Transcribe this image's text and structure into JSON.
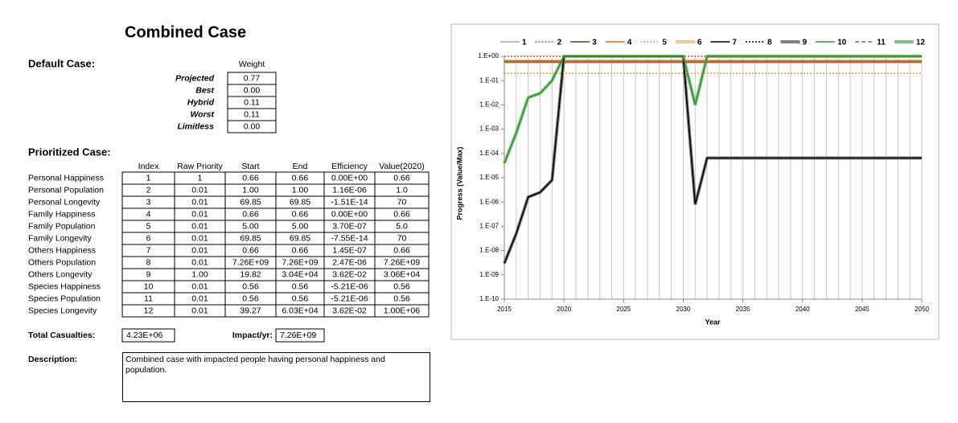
{
  "title": "Combined Case",
  "default_case": {
    "label": "Default Case:",
    "column": "Weight",
    "rows": [
      [
        "Projected",
        "0.77"
      ],
      [
        "Best",
        "0.00"
      ],
      [
        "Hybrid",
        "0.11"
      ],
      [
        "Worst",
        "0.11"
      ],
      [
        "Limitless",
        "0.00"
      ]
    ]
  },
  "prioritized_case": {
    "label": "Prioritized Case:",
    "columns": [
      "Index",
      "Raw Priority",
      "Start",
      "End",
      "Efficiency",
      "Value(2020)"
    ],
    "rows": [
      [
        "Personal Happiness",
        "1",
        "1",
        "0.66",
        "0.66",
        "0.00E+00",
        "0.66"
      ],
      [
        "Personal Population",
        "2",
        "0.01",
        "1.00",
        "1.00",
        "1.16E-06",
        "1.0"
      ],
      [
        "Personal Longevity",
        "3",
        "0.01",
        "69.85",
        "69.85",
        "-1.51E-14",
        "70"
      ],
      [
        "Family Happiness",
        "4",
        "0.01",
        "0.66",
        "0.66",
        "0.00E+00",
        "0.66"
      ],
      [
        "Family Population",
        "5",
        "0.01",
        "5.00",
        "5.00",
        "3.70E-07",
        "5.0"
      ],
      [
        "Family Longevity",
        "6",
        "0.01",
        "69.85",
        "69.85",
        "-7.55E-14",
        "70"
      ],
      [
        "Others Happiness",
        "7",
        "0.01",
        "0.66",
        "0.66",
        "1.45E-07",
        "0.66"
      ],
      [
        "Others Population",
        "8",
        "0.01",
        "7.26E+09",
        "7.26E+09",
        "2.47E-06",
        "7.26E+09"
      ],
      [
        "Others Longevity",
        "9",
        "1.00",
        "19.82",
        "3.04E+04",
        "3.62E-02",
        "3.06E+04"
      ],
      [
        "Species Happiness",
        "10",
        "0.01",
        "0.56",
        "0.56",
        "-5.21E-06",
        "0.56"
      ],
      [
        "Species Population",
        "11",
        "0.01",
        "0.56",
        "0.56",
        "-5.21E-06",
        "0.56"
      ],
      [
        "Species Longevity",
        "12",
        "0.01",
        "39.27",
        "6.03E+04",
        "3.62E-02",
        "1.00E+06"
      ]
    ]
  },
  "totals": {
    "casualties_label": "Total Casualties:",
    "casualties": "4.23E+06",
    "impact_label": "Impact/yr:",
    "impact": "7.26E+09"
  },
  "description": {
    "label": "Description:",
    "text": "Combined case with impacted people having personal happiness and population."
  },
  "chart_data": {
    "type": "line",
    "ylabel": "Progress (Value/Max)",
    "xlabel": "Year",
    "log_y": true,
    "grid": true,
    "legend": "top",
    "x": [
      2015,
      2016,
      2017,
      2018,
      2019,
      2020,
      2021,
      2022,
      2023,
      2024,
      2025,
      2026,
      2027,
      2028,
      2029,
      2030,
      2031,
      2032,
      2033,
      2034,
      2035,
      2036,
      2037,
      2038,
      2039,
      2040,
      2041,
      2042,
      2043,
      2044,
      2045,
      2046,
      2047,
      2048,
      2049,
      2050
    ],
    "xlim": [
      2015,
      2050
    ],
    "xticks": [
      2015,
      2020,
      2025,
      2030,
      2035,
      2040,
      2045,
      2050
    ],
    "ylim": [
      1e-10,
      1
    ],
    "yticks": [
      {
        "value": 1,
        "label": "1.E+00"
      },
      {
        "value": 0.1,
        "label": "1.E-01"
      },
      {
        "value": 0.01,
        "label": "1.E-02"
      },
      {
        "value": 0.001,
        "label": "1.E-03"
      },
      {
        "value": 0.0001,
        "label": "1.E-04"
      },
      {
        "value": 1e-05,
        "label": "1.E-05"
      },
      {
        "value": 1e-06,
        "label": "1.E-06"
      },
      {
        "value": 1e-07,
        "label": "1.E-07"
      },
      {
        "value": 1e-08,
        "label": "1.E-08"
      },
      {
        "value": 1e-09,
        "label": "1.E-09"
      },
      {
        "value": 1e-10,
        "label": "1.E-10"
      }
    ],
    "series": [
      {
        "name": "1",
        "color": "#c8a27a",
        "dash": "solid",
        "width": 1.5,
        "values": [
          0.66,
          0.66,
          0.66,
          0.66,
          0.66,
          0.66,
          0.66,
          0.66,
          0.66,
          0.66,
          0.66,
          0.66,
          0.66,
          0.66,
          0.66,
          0.66,
          0.66,
          0.66,
          0.66,
          0.66,
          0.66,
          0.66,
          0.66,
          0.66,
          0.66,
          0.66,
          0.66,
          0.66,
          0.66,
          0.66,
          0.66,
          0.66,
          0.66,
          0.66,
          0.66,
          0.66
        ]
      },
      {
        "name": "2",
        "color": "#c0504d",
        "dash": "dotted",
        "width": 1.5,
        "values": [
          1,
          1,
          1,
          1,
          1,
          1,
          1,
          1,
          1,
          1,
          1,
          1,
          1,
          1,
          1,
          1,
          1,
          1,
          1,
          1,
          1,
          1,
          1,
          1,
          1,
          1,
          1,
          1,
          1,
          1,
          1,
          1,
          1,
          1,
          1,
          1
        ]
      },
      {
        "name": "3",
        "color": "#8b6c4e",
        "dash": "solid",
        "width": 2,
        "values": [
          0.58,
          0.58,
          0.58,
          0.58,
          0.58,
          0.58,
          0.58,
          0.58,
          0.58,
          0.58,
          0.58,
          0.58,
          0.58,
          0.58,
          0.58,
          0.58,
          0.58,
          0.58,
          0.58,
          0.58,
          0.58,
          0.58,
          0.58,
          0.58,
          0.58,
          0.58,
          0.58,
          0.58,
          0.58,
          0.58,
          0.58,
          0.58,
          0.58,
          0.58,
          0.58,
          0.58
        ]
      },
      {
        "name": "4",
        "color": "#e46c0a",
        "dash": "solid",
        "width": 1.5,
        "values": [
          0.66,
          0.66,
          0.66,
          0.66,
          0.66,
          0.66,
          0.66,
          0.66,
          0.66,
          0.66,
          0.66,
          0.66,
          0.66,
          0.66,
          0.66,
          0.66,
          0.66,
          0.66,
          0.66,
          0.66,
          0.66,
          0.66,
          0.66,
          0.66,
          0.66,
          0.66,
          0.66,
          0.66,
          0.66,
          0.66,
          0.66,
          0.66,
          0.66,
          0.66,
          0.66,
          0.66
        ]
      },
      {
        "name": "5",
        "color": "#f79646",
        "dash": "dotted",
        "width": 1.5,
        "values": [
          0.2,
          0.2,
          0.2,
          0.2,
          0.2,
          0.2,
          0.2,
          0.2,
          0.2,
          0.2,
          0.2,
          0.2,
          0.2,
          0.2,
          0.2,
          0.2,
          0.2,
          0.2,
          0.2,
          0.2,
          0.2,
          0.2,
          0.2,
          0.2,
          0.2,
          0.2,
          0.2,
          0.2,
          0.2,
          0.2,
          0.2,
          0.2,
          0.2,
          0.2,
          0.2,
          0.2
        ]
      },
      {
        "name": "6",
        "color": "#f5c89a",
        "dash": "solid",
        "width": 4,
        "values": [
          0.58,
          0.58,
          0.58,
          0.58,
          0.58,
          0.58,
          0.58,
          0.58,
          0.58,
          0.58,
          0.58,
          0.58,
          0.58,
          0.58,
          0.58,
          0.58,
          0.58,
          0.58,
          0.58,
          0.58,
          0.58,
          0.58,
          0.58,
          0.58,
          0.58,
          0.58,
          0.58,
          0.58,
          0.58,
          0.58,
          0.58,
          0.58,
          0.58,
          0.58,
          0.58,
          0.58
        ]
      },
      {
        "name": "7",
        "color": "#000000",
        "dash": "solid",
        "width": 1.5,
        "values": [
          3e-09,
          5e-08,
          1.6e-06,
          2.5e-06,
          8e-06,
          1,
          1,
          1,
          1,
          1,
          1,
          1,
          1,
          1,
          1,
          1,
          8e-07,
          6.5e-05,
          6.5e-05,
          6.5e-05,
          6.5e-05,
          6.5e-05,
          6.5e-05,
          6.5e-05,
          6.5e-05,
          6.5e-05,
          6.5e-05,
          6.5e-05,
          6.5e-05,
          6.5e-05,
          6.5e-05,
          6.5e-05,
          6.5e-05,
          6.5e-05,
          6.5e-05,
          6.5e-05
        ]
      },
      {
        "name": "8",
        "color": "#000000",
        "dash": "dotted",
        "width": 1.5,
        "values": [
          3e-09,
          5e-08,
          1.6e-06,
          2.5e-06,
          8e-06,
          1,
          1,
          1,
          1,
          1,
          1,
          1,
          1,
          1,
          1,
          1,
          8e-07,
          6.5e-05,
          6.5e-05,
          6.5e-05,
          6.5e-05,
          6.5e-05,
          6.5e-05,
          6.5e-05,
          6.5e-05,
          6.5e-05,
          6.5e-05,
          6.5e-05,
          6.5e-05,
          6.5e-05,
          6.5e-05,
          6.5e-05,
          6.5e-05,
          6.5e-05,
          6.5e-05,
          6.5e-05
        ]
      },
      {
        "name": "9",
        "color": "#7f7f7f",
        "dash": "solid",
        "width": 4,
        "values": [
          3e-09,
          5e-08,
          1.6e-06,
          2.5e-06,
          8e-06,
          1,
          1,
          1,
          1,
          1,
          1,
          1,
          1,
          1,
          1,
          1,
          8e-07,
          6.5e-05,
          6.5e-05,
          6.5e-05,
          6.5e-05,
          6.5e-05,
          6.5e-05,
          6.5e-05,
          6.5e-05,
          6.5e-05,
          6.5e-05,
          6.5e-05,
          6.5e-05,
          6.5e-05,
          6.5e-05,
          6.5e-05,
          6.5e-05,
          6.5e-05,
          6.5e-05,
          6.5e-05
        ]
      },
      {
        "name": "10",
        "color": "#2e9a2e",
        "dash": "solid",
        "width": 1.5,
        "values": [
          4e-05,
          0.0007,
          0.02,
          0.03,
          0.1,
          1,
          1,
          1,
          1,
          1,
          1,
          1,
          1,
          1,
          1,
          1,
          0.01,
          1,
          1,
          1,
          1,
          1,
          1,
          1,
          1,
          1,
          1,
          1,
          1,
          1,
          1,
          1,
          1,
          1,
          1,
          1
        ]
      },
      {
        "name": "11",
        "color": "#2e9a2e",
        "dash": "dashed",
        "width": 1.5,
        "values": [
          4e-05,
          0.0007,
          0.02,
          0.03,
          0.1,
          1,
          1,
          1,
          1,
          1,
          1,
          1,
          1,
          1,
          1,
          1,
          0.01,
          1,
          1,
          1,
          1,
          1,
          1,
          1,
          1,
          1,
          1,
          1,
          1,
          1,
          1,
          1,
          1,
          1,
          1,
          1
        ]
      },
      {
        "name": "12",
        "color": "#7cc47c",
        "dash": "solid",
        "width": 4,
        "values": [
          4e-05,
          0.0007,
          0.02,
          0.03,
          0.1,
          1,
          1,
          1,
          1,
          1,
          1,
          1,
          1,
          1,
          1,
          1,
          0.01,
          1,
          1,
          1,
          1,
          1,
          1,
          1,
          1,
          1,
          1,
          1,
          1,
          1,
          1,
          1,
          1,
          1,
          1,
          1
        ]
      }
    ]
  }
}
